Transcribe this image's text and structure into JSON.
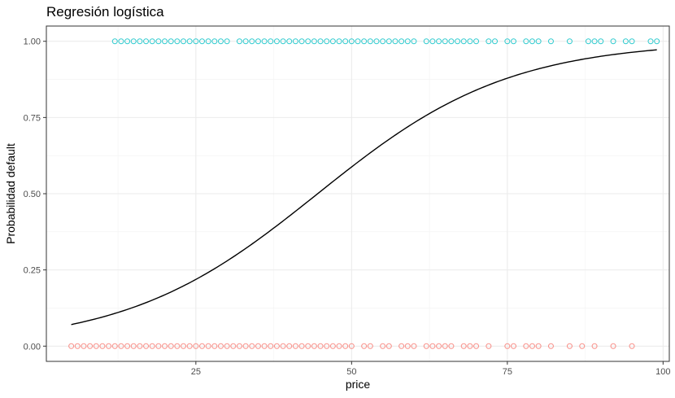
{
  "chart_data": {
    "type": "scatter",
    "title": "Regresión logística",
    "xlabel": "price",
    "ylabel": "Probabilidad default",
    "xlim": [
      1,
      101
    ],
    "ylim": [
      -0.05,
      1.05
    ],
    "x_ticks": [
      25,
      50,
      75,
      100
    ],
    "y_ticks": [
      0,
      0.25,
      0.5,
      0.75,
      1
    ],
    "x_tick_labels": [
      "25",
      "50",
      "75",
      "100"
    ],
    "y_tick_labels": [
      "0.00",
      "0.25",
      "0.50",
      "0.75",
      "1.00"
    ],
    "grid": true,
    "colors": {
      "default_0": "#F8766D",
      "default_1": "#00BFC4",
      "curve": "#000000"
    },
    "series": [
      {
        "y": 1,
        "color": "#00BFC4",
        "x": [
          12,
          13,
          14,
          15,
          16,
          17,
          18,
          19,
          20,
          21,
          22,
          23,
          24,
          25,
          26,
          27,
          28,
          29,
          30,
          32,
          33,
          34,
          35,
          36,
          37,
          38,
          39,
          40,
          41,
          42,
          43,
          44,
          45,
          46,
          47,
          48,
          49,
          50,
          51,
          52,
          53,
          54,
          55,
          56,
          57,
          58,
          59,
          60,
          62,
          63,
          64,
          65,
          66,
          67,
          68,
          69,
          70,
          72,
          73,
          75,
          76,
          78,
          79,
          80,
          82,
          85,
          88,
          89,
          90,
          92,
          94,
          95,
          98,
          99
        ]
      },
      {
        "y": 0,
        "color": "#F8766D",
        "x": [
          5,
          6,
          7,
          8,
          9,
          10,
          11,
          12,
          13,
          14,
          15,
          16,
          17,
          18,
          19,
          20,
          21,
          22,
          23,
          24,
          25,
          26,
          27,
          28,
          29,
          30,
          31,
          32,
          33,
          34,
          35,
          36,
          37,
          38,
          39,
          40,
          41,
          42,
          43,
          44,
          45,
          46,
          47,
          48,
          49,
          50,
          52,
          53,
          55,
          56,
          58,
          59,
          60,
          62,
          63,
          64,
          65,
          66,
          68,
          69,
          70,
          72,
          75,
          76,
          78,
          79,
          80,
          82,
          85,
          87,
          89,
          92,
          95
        ]
      }
    ],
    "logistic_curve": {
      "intercept": -2.9,
      "slope": 0.0651,
      "x_range": [
        5,
        99
      ]
    }
  }
}
